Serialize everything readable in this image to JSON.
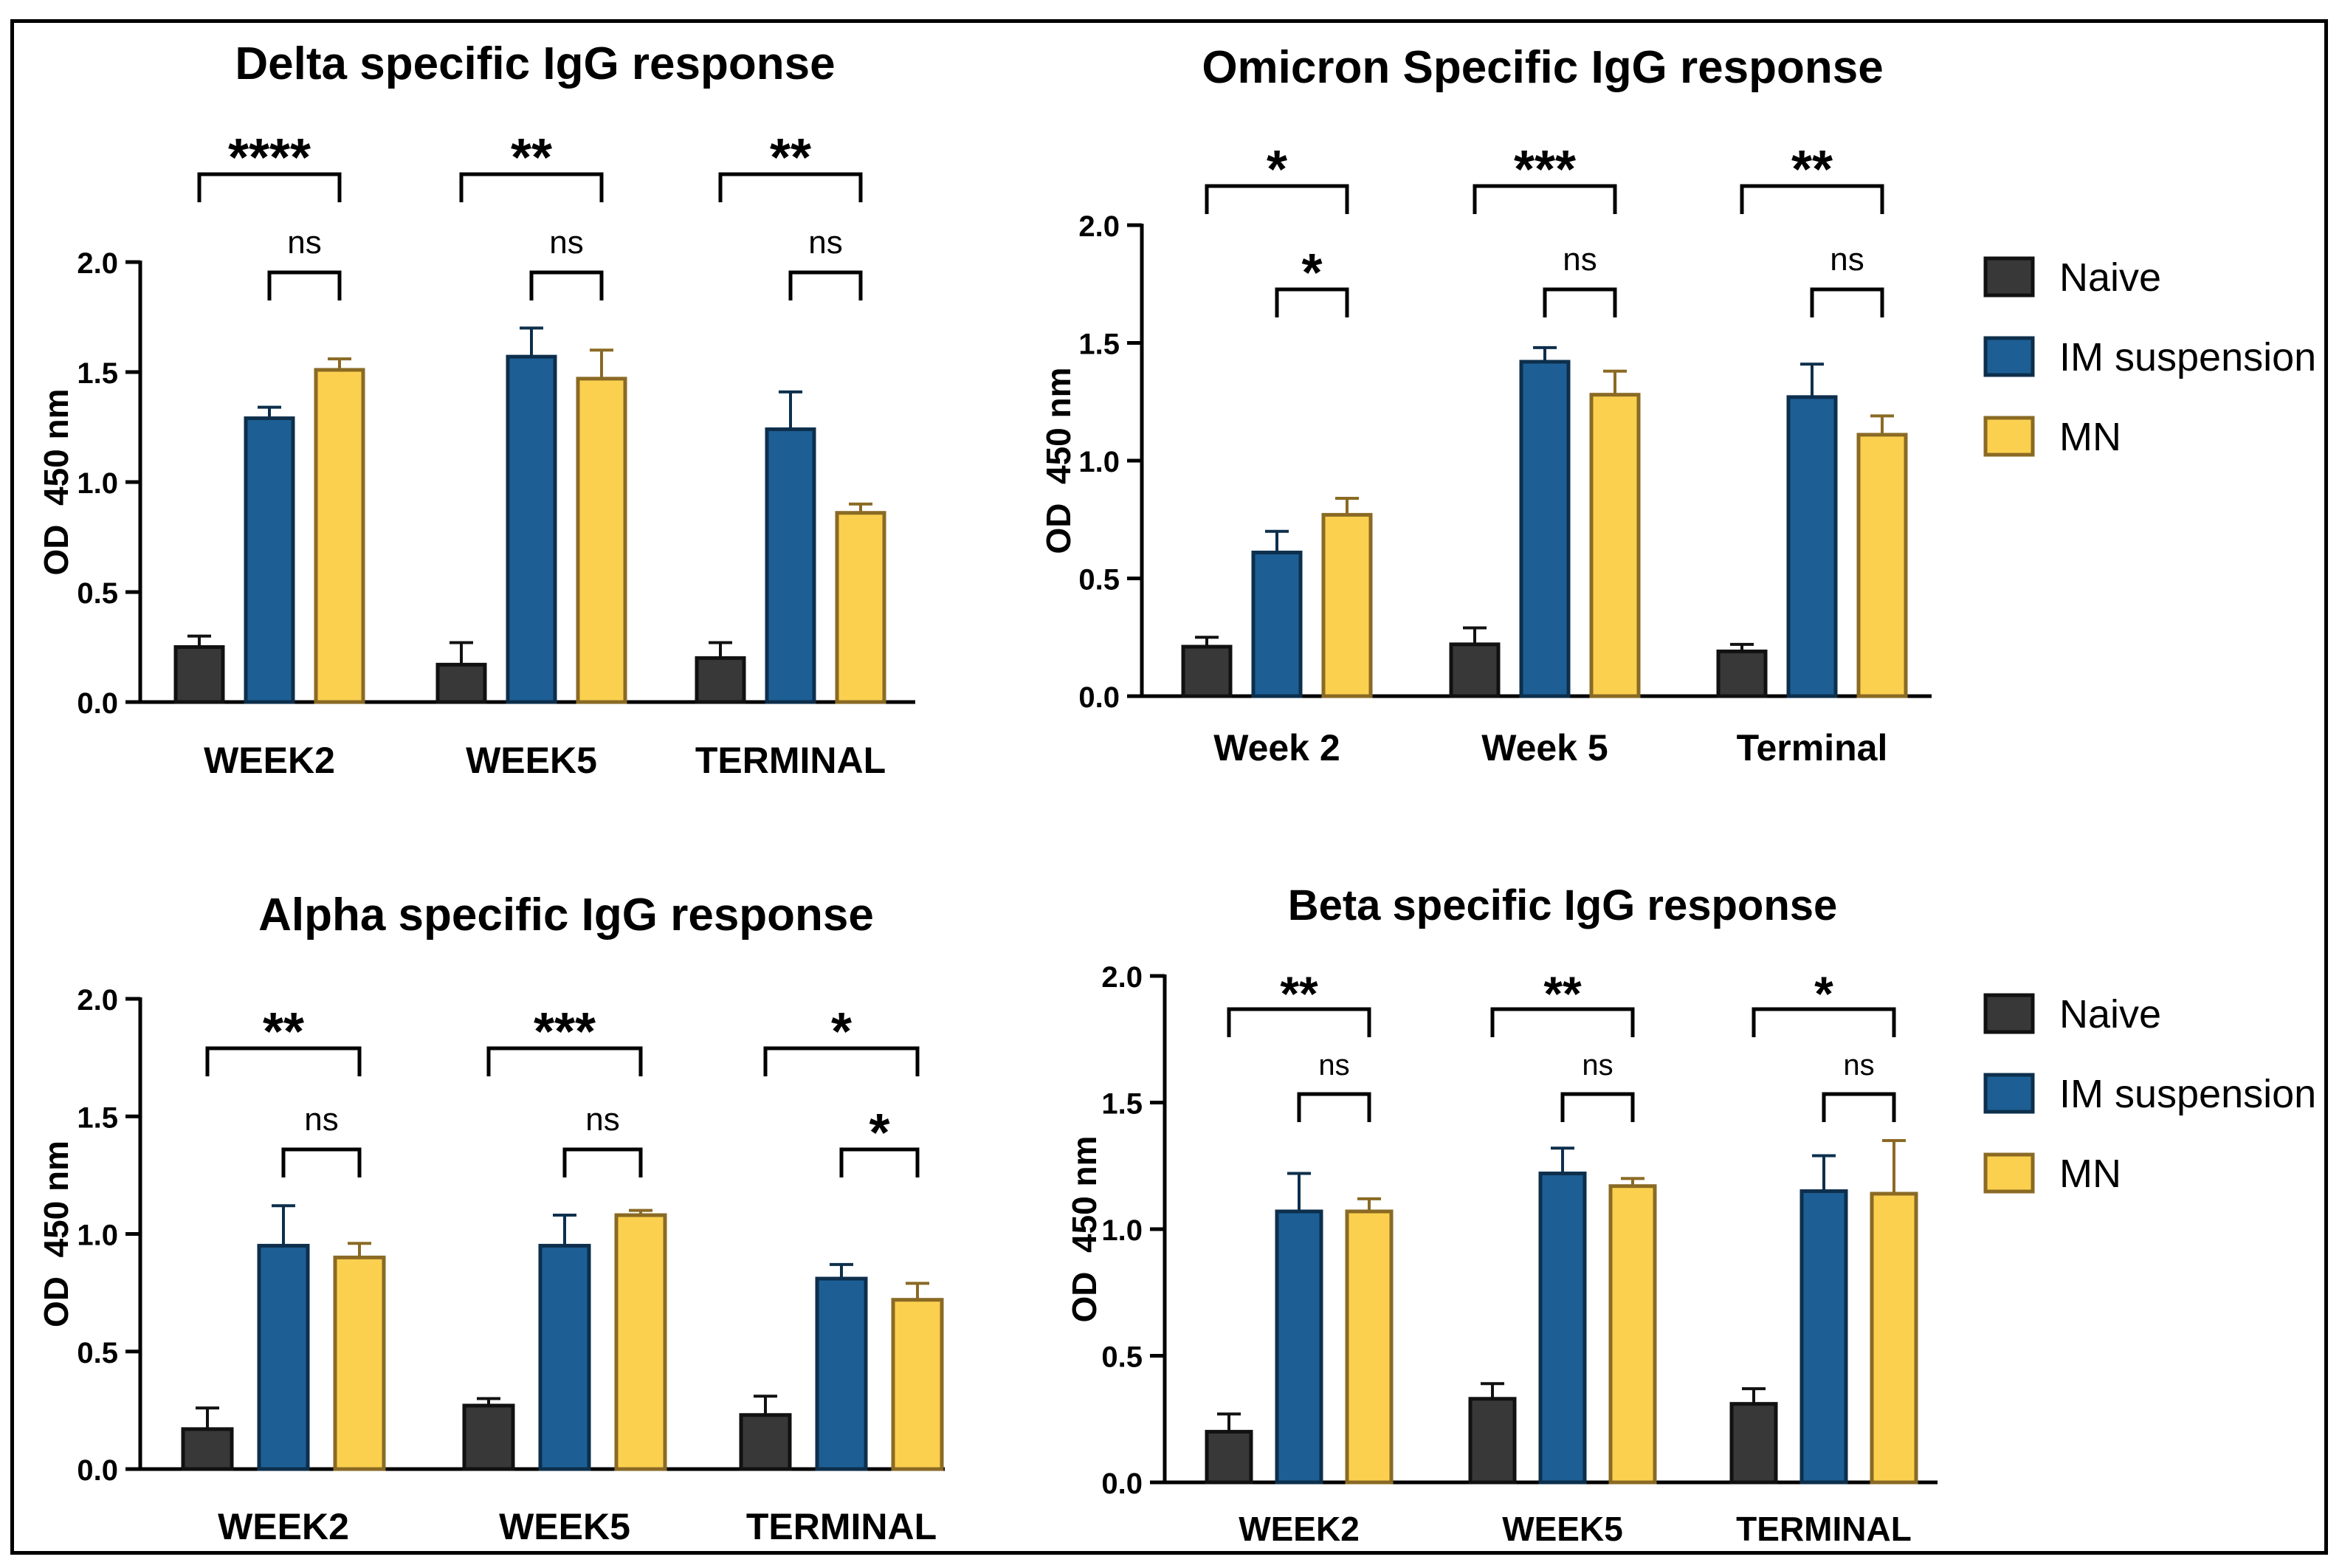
{
  "chart_data": [
    {
      "id": "delta",
      "type": "bar",
      "title": "Delta specific IgG response",
      "ylabel": "OD  450 nm",
      "xlabel": "",
      "ylim": [
        0,
        2.0
      ],
      "yticks": [
        "0.0",
        "0.5",
        "1.0",
        "1.5",
        "2.0"
      ],
      "categories": [
        "WEEK2",
        "WEEK5",
        "TERMINAL"
      ],
      "series": [
        {
          "name": "Naive",
          "values": [
            0.25,
            0.17,
            0.2
          ],
          "errors": [
            0.05,
            0.1,
            0.07
          ]
        },
        {
          "name": "IM suspension",
          "values": [
            1.29,
            1.57,
            1.24
          ],
          "errors": [
            0.05,
            0.13,
            0.17
          ]
        },
        {
          "name": "MN",
          "values": [
            1.51,
            1.47,
            0.86
          ],
          "errors": [
            0.05,
            0.13,
            0.04
          ]
        }
      ],
      "significance": [
        {
          "outer": "****",
          "inner": "ns"
        },
        {
          "outer": "**",
          "inner": "ns"
        },
        {
          "outer": "**",
          "inner": "ns"
        }
      ],
      "legend": false
    },
    {
      "id": "omicron",
      "type": "bar",
      "title": "Omicron Specific IgG response",
      "ylabel": "OD  450 nm",
      "xlabel": "",
      "ylim": [
        0,
        2.0
      ],
      "yticks": [
        "0.0",
        "0.5",
        "1.0",
        "1.5",
        "2.0"
      ],
      "categories": [
        "Week 2",
        "Week 5",
        "Terminal"
      ],
      "series": [
        {
          "name": "Naive",
          "values": [
            0.21,
            0.22,
            0.19
          ],
          "errors": [
            0.04,
            0.07,
            0.03
          ]
        },
        {
          "name": "IM suspension",
          "values": [
            0.61,
            1.42,
            1.27
          ],
          "errors": [
            0.09,
            0.06,
            0.14
          ]
        },
        {
          "name": "MN",
          "values": [
            0.77,
            1.28,
            1.11
          ],
          "errors": [
            0.07,
            0.1,
            0.08
          ]
        }
      ],
      "significance": [
        {
          "outer": "*",
          "inner": "*"
        },
        {
          "outer": "***",
          "inner": "ns"
        },
        {
          "outer": "**",
          "inner": "ns"
        }
      ],
      "legend": true
    },
    {
      "id": "alpha",
      "type": "bar",
      "title": "Alpha specific IgG response",
      "ylabel": "OD  450 nm",
      "xlabel": "",
      "ylim": [
        0,
        2.0
      ],
      "yticks": [
        "0.0",
        "0.5",
        "1.0",
        "1.5",
        "2.0"
      ],
      "categories": [
        "WEEK2",
        "WEEK5",
        "TERMINAL"
      ],
      "series": [
        {
          "name": "Naive",
          "values": [
            0.17,
            0.27,
            0.23
          ],
          "errors": [
            0.09,
            0.03,
            0.08
          ]
        },
        {
          "name": "IM suspension",
          "values": [
            0.95,
            0.95,
            0.81
          ],
          "errors": [
            0.17,
            0.13,
            0.06
          ]
        },
        {
          "name": "MN",
          "values": [
            0.9,
            1.08,
            0.72
          ],
          "errors": [
            0.06,
            0.02,
            0.07
          ]
        }
      ],
      "significance": [
        {
          "outer": "**",
          "inner": "ns"
        },
        {
          "outer": "***",
          "inner": "ns"
        },
        {
          "outer": "*",
          "inner": "*"
        }
      ],
      "legend": false
    },
    {
      "id": "beta",
      "type": "bar",
      "title": "Beta specific IgG response",
      "ylabel": "OD  450 nm",
      "xlabel": "",
      "ylim": [
        0,
        2.0
      ],
      "yticks": [
        "0.0",
        "0.5",
        "1.0",
        "1.5",
        "2.0"
      ],
      "categories": [
        "WEEK2",
        "WEEK5",
        "TERMINAL"
      ],
      "series": [
        {
          "name": "Naive",
          "values": [
            0.2,
            0.33,
            0.31
          ],
          "errors": [
            0.07,
            0.06,
            0.06
          ]
        },
        {
          "name": "IM suspension",
          "values": [
            1.07,
            1.22,
            1.15
          ],
          "errors": [
            0.15,
            0.1,
            0.14
          ]
        },
        {
          "name": "MN",
          "values": [
            1.07,
            1.17,
            1.14
          ],
          "errors": [
            0.05,
            0.03,
            0.21
          ]
        }
      ],
      "significance": [
        {
          "outer": "**",
          "inner": "ns"
        },
        {
          "outer": "**",
          "inner": "ns"
        },
        {
          "outer": "*",
          "inner": "ns"
        }
      ],
      "legend": true
    }
  ],
  "legend": {
    "entries": [
      "Naive",
      "IM suspension",
      "MN"
    ]
  },
  "colors": {
    "naive_fill": "#383838",
    "naive_edge": "#111111",
    "im_fill": "#1d5f95",
    "im_edge": "#0d2f4c",
    "mn_fill": "#fbd04f",
    "mn_edge": "#8a6a24",
    "axis": "#000000"
  }
}
